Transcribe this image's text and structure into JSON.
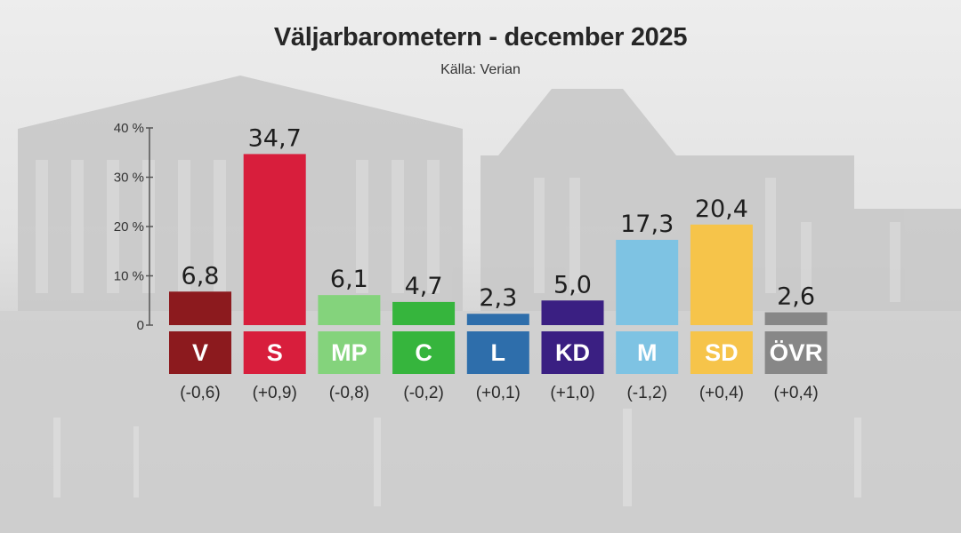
{
  "header": {
    "title": "Väljarbarometern - december 2025",
    "subtitle": "Källa: Verian"
  },
  "chart_data": {
    "type": "bar",
    "title": "Väljarbarometern - december 2025",
    "subtitle": "Källa: Verian",
    "ylim": [
      0,
      40
    ],
    "yticks": [
      {
        "value": 0,
        "label": "0"
      },
      {
        "value": 10,
        "label": "10 %"
      },
      {
        "value": 20,
        "label": "20 %"
      },
      {
        "value": 30,
        "label": "30 %"
      },
      {
        "value": 40,
        "label": "40 %"
      }
    ],
    "grid": false,
    "categories": [
      "V",
      "S",
      "MP",
      "C",
      "L",
      "KD",
      "M",
      "SD",
      "ÖVR"
    ],
    "values": [
      6.8,
      34.7,
      6.1,
      4.7,
      2.3,
      5.0,
      17.3,
      20.4,
      2.6
    ],
    "value_labels": [
      "6,8",
      "34,7",
      "6,1",
      "4,7",
      "2,3",
      "5,0",
      "17,3",
      "20,4",
      "2,6"
    ],
    "changes": [
      -0.6,
      0.9,
      -0.8,
      -0.2,
      0.1,
      1.0,
      -1.2,
      0.4,
      0.4
    ],
    "change_labels": [
      "(-0,6)",
      "(+0,9)",
      "(-0,8)",
      "(-0,2)",
      "(+0,1)",
      "(+1,0)",
      "(-1,2)",
      "(+0,4)",
      "(+0,4)"
    ],
    "colors": [
      "#8c1a1e",
      "#d81e3c",
      "#84d37c",
      "#36b53d",
      "#2e6eab",
      "#3a1f82",
      "#7ec3e3",
      "#f6c44a",
      "#878787"
    ]
  }
}
